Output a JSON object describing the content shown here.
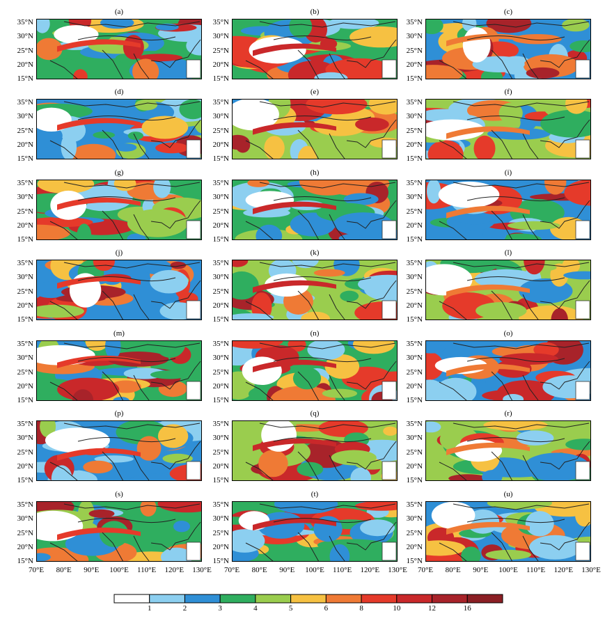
{
  "chart_data": {
    "type": "heatmap",
    "panels": [
      "(a)",
      "(b)",
      "(c)",
      "(d)",
      "(e)",
      "(f)",
      "(g)",
      "(h)",
      "(i)",
      "(j)",
      "(k)",
      "(l)",
      "(m)",
      "(n)",
      "(o)",
      "(p)",
      "(q)",
      "(r)",
      "(s)",
      "(t)",
      "(u)"
    ],
    "x_ticks": [
      "70°E",
      "80°E",
      "90°E",
      "100°E",
      "110°E",
      "120°E",
      "130°E"
    ],
    "y_ticks": [
      "35°N",
      "30°N",
      "25°N",
      "20°N",
      "15°N"
    ],
    "xlim": [
      70,
      130
    ],
    "ylim": [
      15,
      36
    ],
    "colorbar": {
      "tick_labels": [
        "1",
        "2",
        "3",
        "4",
        "5",
        "6",
        "8",
        "10",
        "12",
        "16"
      ],
      "colors": [
        "#ffffff",
        "#8ccff0",
        "#2f8fd6",
        "#2fae5f",
        "#9acd4e",
        "#f6c142",
        "#ef7a35",
        "#e53a2a",
        "#c9282a",
        "#a8232a",
        "#8b1f24"
      ]
    }
  }
}
